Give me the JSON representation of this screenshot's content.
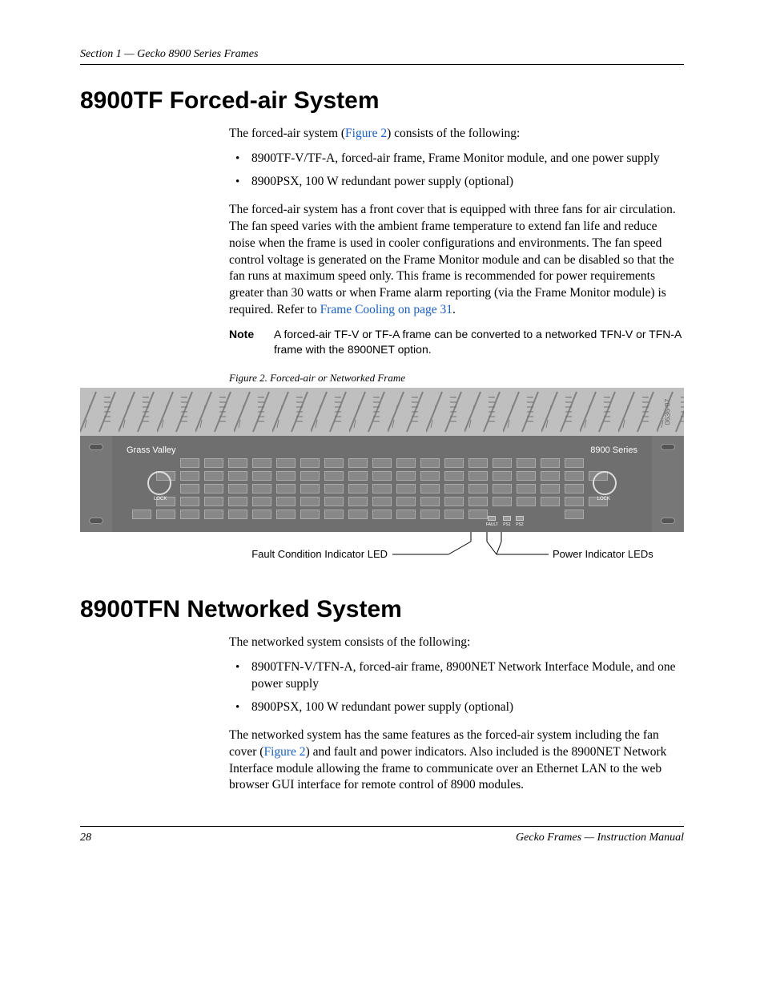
{
  "header": {
    "running": "Section 1 — Gecko 8900 Series Frames"
  },
  "section1": {
    "title": "8900TF Forced-air System",
    "intro_a": "The forced-air system (",
    "intro_link": "Figure 2",
    "intro_b": ") consists of the following:",
    "bullets": [
      "8900TF-V/TF-A, forced-air frame, Frame Monitor module, and one power supply",
      "8900PSX, 100 W redundant power supply (optional)"
    ],
    "para2_a": "The forced-air system has a front cover that is equipped with three fans for air circulation. The fan speed varies with the ambient frame temperature to extend fan life and reduce noise when the frame is used in cooler configurations and environments. The fan speed control voltage is generated on the Frame Monitor module and can be disabled so that the fan runs at maximum speed only. This frame is recommended for power requirements greater than 30 watts or when Frame alarm reporting (via the Frame Monitor module) is required. Refer to ",
    "para2_link": "Frame Cooling",
    "para2_b": " on page 31",
    "para2_c": ".",
    "note_label": "Note",
    "note_text": "A forced-air TF-V or TF-A frame can be converted to a networked TFN-V or TFN-A frame with the 8900NET option."
  },
  "figure": {
    "caption": "Figure 2.  Forced-air or Networked Frame",
    "diagram_id": "0636-07",
    "brand_left": "Grass Valley",
    "brand_right": "8900 Series",
    "lock_label": "LOCK",
    "indicators": [
      {
        "label": "FAULT"
      },
      {
        "label": "PS1"
      },
      {
        "label": "PS2"
      }
    ],
    "callout_left": "Fault Condition Indicator LED",
    "callout_right": "Power Indicator LEDs",
    "vent_stroke": "#808080",
    "vent_fill": "#bfbfbf",
    "grid_cols": 21,
    "grid_rows_full": 3,
    "colors": {
      "panel_bg": "#6f6f6f",
      "cell_bg": "#888888",
      "cell_border": "#aaaaaa",
      "text_light": "#ffffff"
    }
  },
  "section2": {
    "title": "8900TFN Networked System",
    "intro": "The networked system consists of the following:",
    "bullets": [
      "8900TFN-V/TFN-A, forced-air frame, 8900NET Network Interface Module, and one power supply",
      "8900PSX, 100 W redundant power supply (optional)"
    ],
    "para2_a": "The networked system has the same features as the forced-air system including the fan cover (",
    "para2_link": "Figure 2",
    "para2_b": ") and fault and power indicators. Also included is the 8900NET Network Interface module allowing the frame to communicate over an Ethernet LAN to the web browser GUI interface for remote control of 8900 modules."
  },
  "footer": {
    "page": "28",
    "title": "Gecko Frames  —  Instruction Manual"
  }
}
